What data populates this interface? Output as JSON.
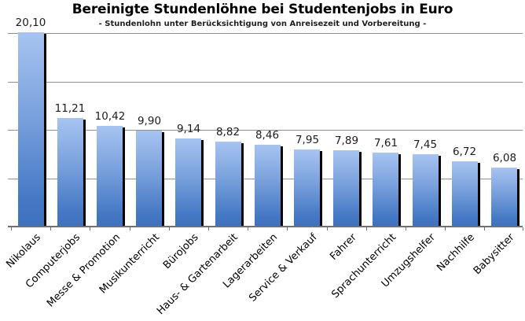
{
  "chart_data": {
    "type": "bar",
    "title": "Bereinigte Stundenlöhne bei Studentenjobs in Euro",
    "subtitle": "- Stundenlohn unter Berücksichtigung von Anreisezeit und Vorbereitung -",
    "categories": [
      "Nikolaus",
      "Computerjobs",
      "Messe & Promotion",
      "Musikunterricht",
      "Bürojobs",
      "Haus- & Gartenarbeit",
      "Lagerarbeiten",
      "Service & Verkauf",
      "Fahrer",
      "Sprachunterricht",
      "Umzugshelfer",
      "Nachhilfe",
      "Babysitter"
    ],
    "values": [
      20.1,
      11.21,
      10.42,
      9.9,
      9.14,
      8.82,
      8.46,
      7.95,
      7.89,
      7.61,
      7.45,
      6.72,
      6.08
    ],
    "value_labels": [
      "20,10",
      "11,21",
      "10,42",
      "9,90",
      "9,14",
      "8,82",
      "8,46",
      "7,95",
      "7,89",
      "7,61",
      "7,45",
      "6,72",
      "6,08"
    ],
    "xlabel": "",
    "ylabel": "",
    "ylim": [
      0,
      20
    ],
    "gridline_step": 5,
    "grid": true,
    "legend": false,
    "x_tick_label_rotation_deg": 45,
    "decimal_separator": ",",
    "colors": {
      "bar_gradient_top": "#a7c4f1",
      "bar_gradient_bottom": "#3f72bd",
      "bar_shadow": "#000000",
      "gridline": "#8f8f8f",
      "axis": "#707070",
      "value_label": "#1c1c1c",
      "category_label": "#000000",
      "title": "#000000",
      "background": "#ffffff"
    }
  }
}
